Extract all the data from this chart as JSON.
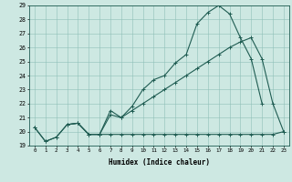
{
  "xlabel": "Humidex (Indice chaleur)",
  "x_upper": [
    0,
    1,
    2,
    3,
    4,
    5,
    6,
    7,
    8,
    9,
    10,
    11,
    12,
    13,
    14,
    15,
    16,
    17,
    18,
    19,
    20,
    21
  ],
  "y_upper": [
    20.3,
    19.3,
    19.6,
    20.5,
    20.6,
    19.8,
    19.8,
    21.5,
    21.0,
    21.8,
    23.0,
    23.7,
    24.0,
    24.9,
    25.5,
    27.7,
    28.5,
    29.0,
    28.4,
    26.7,
    25.2,
    22.0
  ],
  "x_middle": [
    3,
    4,
    5,
    6,
    7,
    8,
    9,
    10,
    11,
    12,
    13,
    14,
    15,
    16,
    17,
    18,
    19,
    20,
    21,
    22,
    23
  ],
  "y_middle": [
    20.5,
    20.6,
    19.8,
    19.8,
    21.2,
    21.0,
    21.5,
    22.0,
    22.5,
    23.0,
    23.5,
    24.0,
    24.5,
    25.0,
    25.5,
    26.0,
    26.4,
    26.7,
    25.2,
    22.0,
    20.0
  ],
  "x_flat": [
    0,
    1,
    2,
    3,
    4,
    5,
    6,
    7,
    8,
    9,
    10,
    11,
    12,
    13,
    14,
    15,
    16,
    17,
    18,
    19,
    20,
    21,
    22,
    23
  ],
  "y_flat": [
    20.3,
    19.3,
    19.6,
    20.5,
    20.6,
    19.8,
    19.8,
    19.8,
    19.8,
    19.8,
    19.8,
    19.8,
    19.8,
    19.8,
    19.8,
    19.8,
    19.8,
    19.8,
    19.8,
    19.8,
    19.8,
    19.8,
    19.8,
    20.0
  ],
  "xlim": [
    -0.5,
    23.5
  ],
  "ylim": [
    19,
    29
  ],
  "yticks": [
    19,
    20,
    21,
    22,
    23,
    24,
    25,
    26,
    27,
    28,
    29
  ],
  "xticks": [
    0,
    1,
    2,
    3,
    4,
    5,
    6,
    7,
    8,
    9,
    10,
    11,
    12,
    13,
    14,
    15,
    16,
    17,
    18,
    19,
    20,
    21,
    22,
    23
  ],
  "line_color": "#1f5c52",
  "bg_color": "#cde8e2",
  "grid_color": "#8fbfb8",
  "figsize": [
    3.2,
    2.0
  ],
  "dpi": 100
}
